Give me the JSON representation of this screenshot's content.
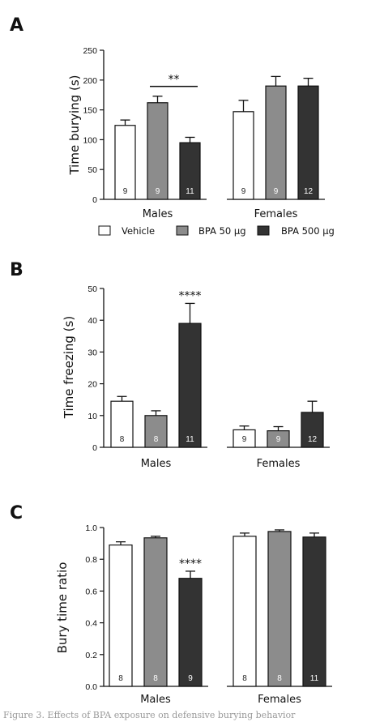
{
  "chart_data": [
    {
      "panel": "A",
      "type": "bar",
      "ylabel": "Time burying (s)",
      "ylim": [
        0,
        250
      ],
      "yticks": [
        0,
        50,
        100,
        150,
        200,
        250
      ],
      "groups": [
        "Males",
        "Females"
      ],
      "series": [
        {
          "name": "Vehicle",
          "values": [
            124,
            147
          ],
          "errors": [
            9,
            19
          ],
          "n": [
            "9",
            "9"
          ]
        },
        {
          "name": "BPA 50 µg",
          "values": [
            162,
            190
          ],
          "errors": [
            11,
            16
          ],
          "n": [
            "9",
            "9"
          ]
        },
        {
          "name": "BPA 500 µg",
          "values": [
            95,
            190
          ],
          "errors": [
            9,
            13
          ],
          "n": [
            "11",
            "12"
          ]
        }
      ],
      "annotations": [
        {
          "text": "**",
          "group": 0,
          "span": [
            1,
            2
          ]
        }
      ]
    },
    {
      "panel": "B",
      "type": "bar",
      "ylabel": "Time freezing (s)",
      "ylim": [
        0,
        50
      ],
      "yticks": [
        0,
        10,
        20,
        30,
        40,
        50
      ],
      "groups": [
        "Males",
        "Females"
      ],
      "series": [
        {
          "name": "Vehicle",
          "values": [
            14.5,
            5.5
          ],
          "errors": [
            1.5,
            1.2
          ],
          "n": [
            "8",
            "9"
          ]
        },
        {
          "name": "BPA 50 µg",
          "values": [
            10,
            5.2
          ],
          "errors": [
            1.5,
            1.3
          ],
          "n": [
            "8",
            "9"
          ]
        },
        {
          "name": "BPA 500 µg",
          "values": [
            39,
            11
          ],
          "errors": [
            6.3,
            3.5
          ],
          "n": [
            "11",
            "12"
          ]
        }
      ],
      "annotations": [
        {
          "text": "****",
          "group": 0,
          "bar": 2
        }
      ]
    },
    {
      "panel": "C",
      "type": "bar",
      "ylabel": "Bury time ratio",
      "ylim": [
        0,
        1.0
      ],
      "yticks": [
        "0.0",
        "0.2",
        "0.4",
        "0.6",
        "0.8",
        "1.0"
      ],
      "groups": [
        "Males",
        "Females"
      ],
      "series": [
        {
          "name": "Vehicle",
          "values": [
            0.89,
            0.945
          ],
          "errors": [
            0.02,
            0.02
          ],
          "n": [
            "8",
            "8"
          ]
        },
        {
          "name": "BPA 50 µg",
          "values": [
            0.935,
            0.975
          ],
          "errors": [
            0.01,
            0.01
          ],
          "n": [
            "8",
            "8"
          ]
        },
        {
          "name": "BPA 500 µg",
          "values": [
            0.68,
            0.94
          ],
          "errors": [
            0.045,
            0.025
          ],
          "n": [
            "9",
            "11"
          ]
        }
      ],
      "annotations": [
        {
          "text": "****",
          "group": 0,
          "bar": 2
        }
      ]
    }
  ],
  "legend": {
    "items": [
      {
        "label": "Vehicle",
        "color": "#ffffff"
      },
      {
        "label": "BPA 50 µg",
        "color": "#8c8c8c"
      },
      {
        "label": "BPA 500 µg",
        "color": "#333333"
      }
    ]
  },
  "colors": {
    "vehicle": "#ffffff",
    "bpa50": "#8c8c8c",
    "bpa500": "#333333",
    "axis": "#111111"
  },
  "caption": "Figure 3. Effects of BPA exposure on defensive burying behavior"
}
